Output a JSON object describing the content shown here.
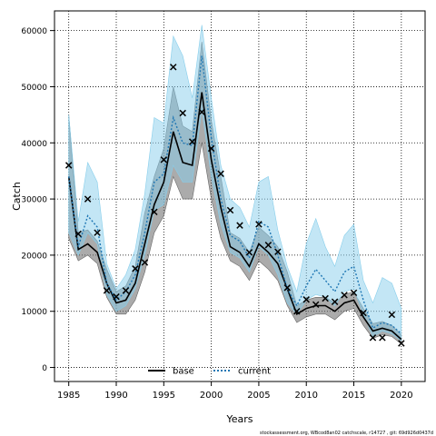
{
  "chart_data": {
    "type": "line",
    "xlabel": "Years",
    "ylabel": "Catch",
    "footer": "stockassessment.org, WBcod8an02 catchscale, r14727 , git: 69d926d0437d",
    "xlim": [
      1983.5,
      2022.5
    ],
    "ylim": [
      -2500,
      63500
    ],
    "xticks": [
      1985,
      1990,
      1995,
      2000,
      2005,
      2010,
      2015,
      2020
    ],
    "yticks": [
      0,
      10000,
      20000,
      30000,
      40000,
      50000,
      60000
    ],
    "grid": true,
    "legend_position": "bottom-center",
    "years": [
      1985,
      1986,
      1987,
      1988,
      1989,
      1990,
      1991,
      1992,
      1993,
      1994,
      1995,
      1996,
      1997,
      1998,
      1999,
      2000,
      2001,
      2002,
      2003,
      2004,
      2005,
      2006,
      2007,
      2008,
      2009,
      2010,
      2011,
      2012,
      2013,
      2014,
      2015,
      2016,
      2017,
      2018,
      2019,
      2020
    ],
    "observed": [
      36000,
      23800,
      30000,
      24000,
      13700,
      12600,
      13700,
      17600,
      18700,
      27700,
      37000,
      53500,
      45300,
      40200,
      45500,
      39000,
      34500,
      28000,
      25300,
      20500,
      25500,
      21800,
      20600,
      14200,
      10000,
      12100,
      11200,
      12300,
      11700,
      12900,
      13300,
      9700,
      5300,
      5300,
      9400,
      4300
    ],
    "series": [
      {
        "name": "base",
        "color": "#000000",
        "band_color": "#666666",
        "values": [
          34000,
          21000,
          22000,
          20500,
          15000,
          11500,
          12000,
          15000,
          22000,
          29000,
          33000,
          42000,
          36500,
          36000,
          49000,
          37000,
          28500,
          21500,
          20500,
          18000,
          22000,
          20500,
          18500,
          14000,
          9500,
          10500,
          11000,
          11000,
          10000,
          11500,
          12000,
          9000,
          6500,
          7000,
          6500,
          5000
        ],
        "lower": [
          23000,
          19000,
          20000,
          18500,
          12500,
          9500,
          9500,
          12000,
          17000,
          24000,
          27000,
          34000,
          30000,
          30000,
          40000,
          30000,
          23000,
          19000,
          18000,
          15500,
          19000,
          17500,
          15500,
          11000,
          8000,
          9000,
          9500,
          9500,
          8500,
          10000,
          10500,
          7500,
          5200,
          5800,
          5500,
          4200
        ],
        "upper": [
          45000,
          24000,
          24500,
          22500,
          17500,
          13500,
          14500,
          18000,
          27500,
          34000,
          39000,
          50000,
          43000,
          42000,
          58000,
          44000,
          34000,
          24000,
          23000,
          20500,
          25000,
          23500,
          21500,
          17000,
          11000,
          12000,
          12500,
          12500,
          11500,
          13000,
          13500,
          10500,
          7800,
          8200,
          7500,
          5800
        ]
      },
      {
        "name": "current",
        "color": "#1f77b4",
        "band_color": "#87ceeb",
        "values": [
          34000,
          21500,
          27000,
          25000,
          15000,
          12000,
          13500,
          16500,
          24000,
          33000,
          34500,
          44500,
          40000,
          39500,
          55500,
          41000,
          30000,
          23500,
          22500,
          19500,
          26000,
          25000,
          20000,
          14000,
          11000,
          14500,
          17500,
          15500,
          13500,
          17000,
          18000,
          12000,
          7000,
          8000,
          7500,
          6000
        ],
        "lower": [
          24000,
          20000,
          24000,
          22000,
          13000,
          10000,
          11000,
          14000,
          20000,
          28000,
          29000,
          36000,
          33000,
          33000,
          46000,
          34000,
          25500,
          20500,
          19500,
          17000,
          21500,
          20000,
          16500,
          11500,
          9500,
          12000,
          13000,
          12500,
          11000,
          13500,
          14000,
          9500,
          5500,
          6500,
          6000,
          4800
        ],
        "upper": [
          45000,
          26000,
          36500,
          33000,
          18500,
          14000,
          16500,
          21000,
          31000,
          44500,
          43500,
          59000,
          55500,
          48000,
          61000,
          48000,
          36000,
          30000,
          28500,
          25000,
          33000,
          34000,
          24500,
          18000,
          13500,
          22000,
          26500,
          21500,
          18000,
          23500,
          25500,
          15500,
          11500,
          16000,
          15000,
          10500
        ]
      }
    ]
  }
}
